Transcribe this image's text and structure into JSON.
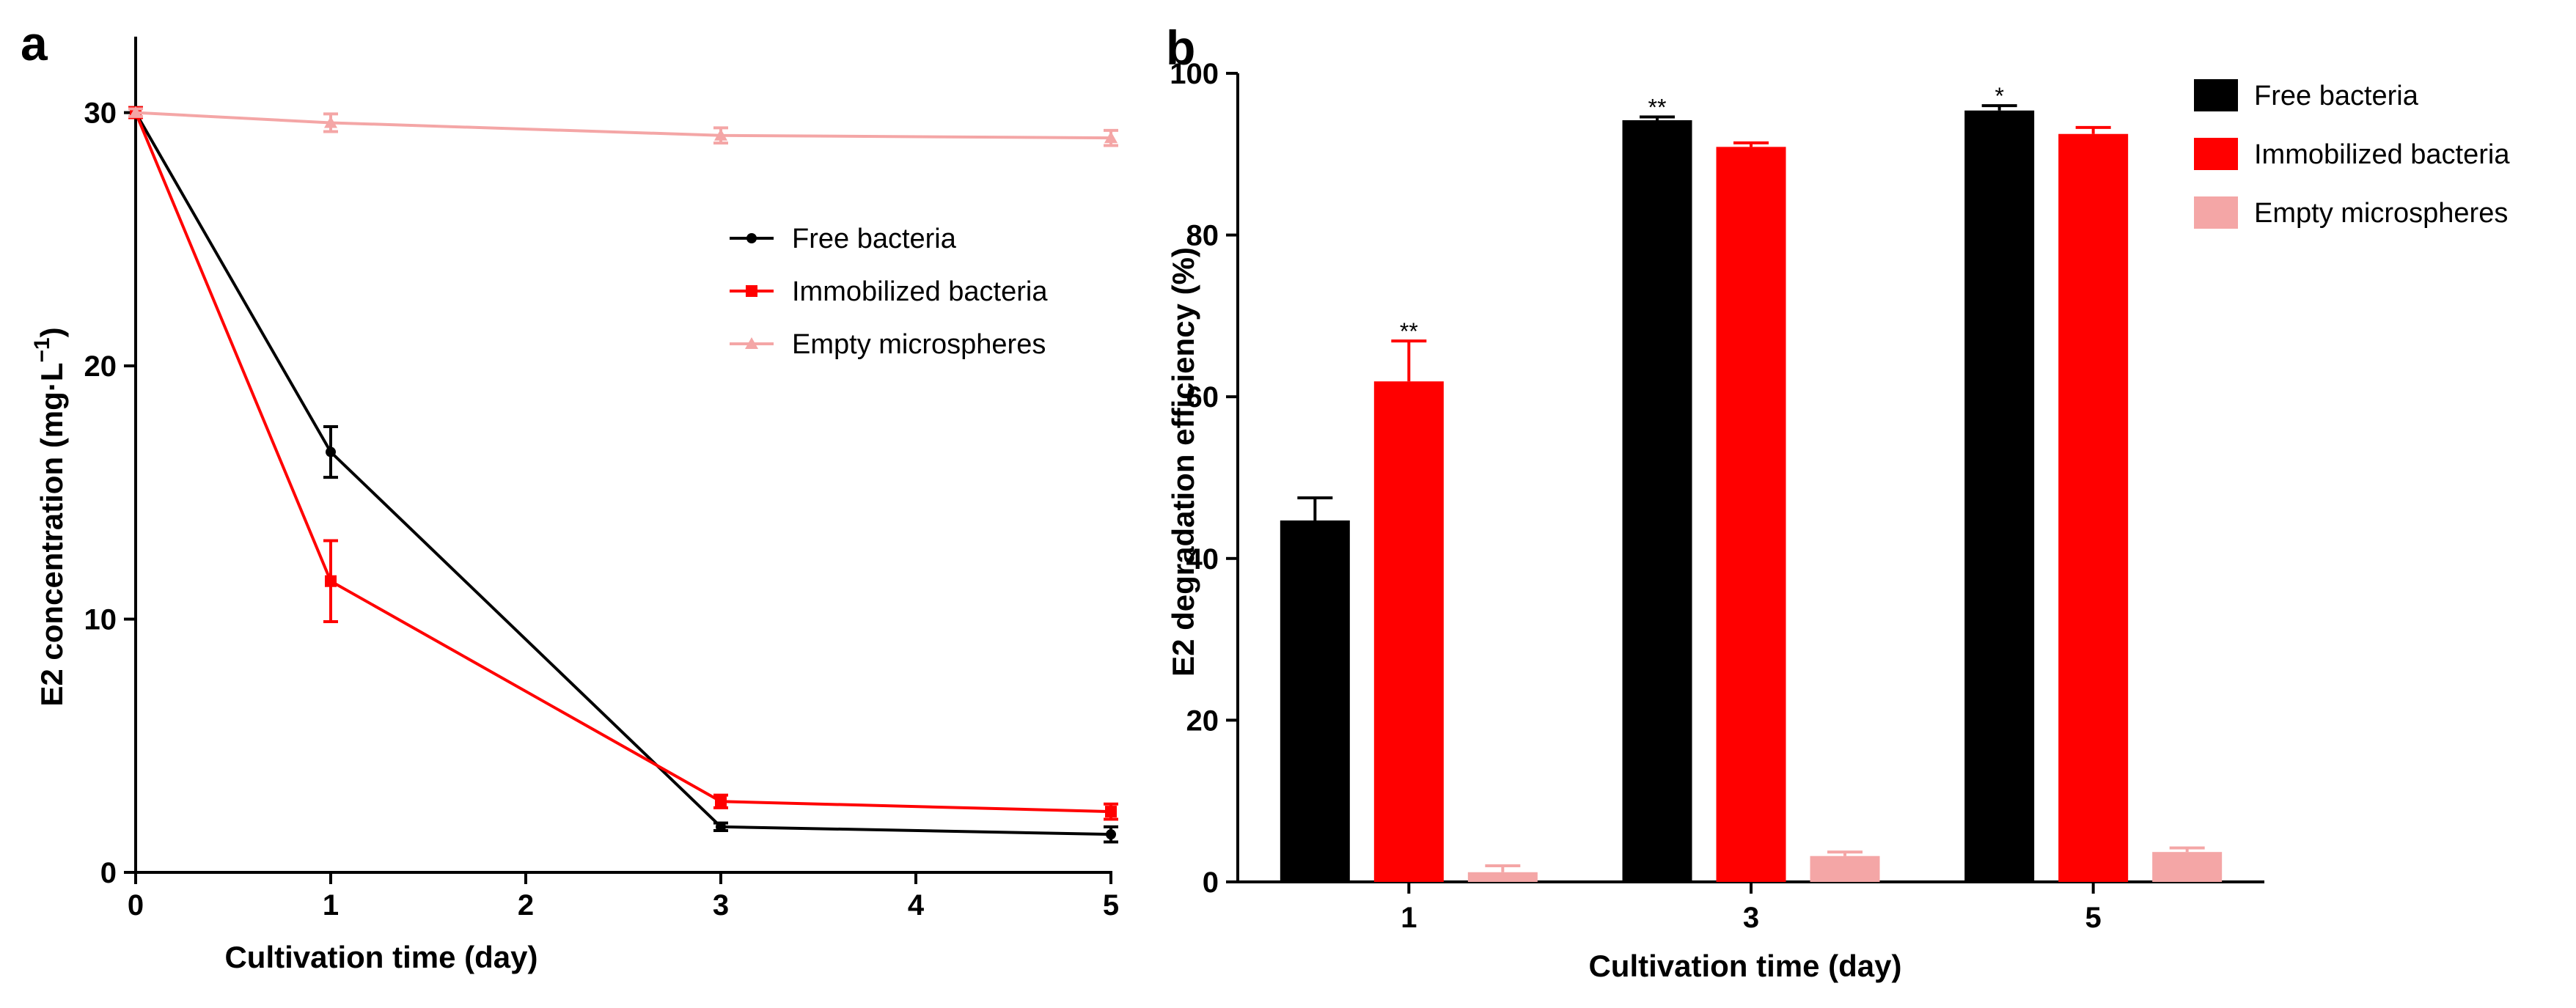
{
  "chart_data": [
    {
      "panel_label": "a",
      "type": "line",
      "xlabel": "Cultivation time (day)",
      "ylabel": "E2 concentration (mg·L",
      "ylabel_sup": "−1",
      "ylabel_close": ")",
      "xlim": [
        0,
        5
      ],
      "ylim": [
        0,
        33
      ],
      "x_ticks": [
        "0",
        "1",
        "2",
        "3",
        "4",
        "5"
      ],
      "y_ticks": [
        "0",
        "10",
        "20",
        "30"
      ],
      "legend_position": "center-right",
      "series": [
        {
          "name": "Free bacteria",
          "color": "#000000",
          "marker": "circle",
          "x": [
            0,
            1,
            3,
            5
          ],
          "y": [
            30.0,
            16.6,
            1.8,
            1.5
          ],
          "err": [
            0.2,
            1.0,
            0.15,
            0.3
          ]
        },
        {
          "name": "Immobilized bacteria",
          "color": "#ff0000",
          "marker": "square",
          "x": [
            0,
            1,
            3,
            5
          ],
          "y": [
            30.0,
            11.5,
            2.8,
            2.4
          ],
          "err": [
            0.2,
            1.6,
            0.25,
            0.3
          ]
        },
        {
          "name": "Empty microspheres",
          "color": "#f4a6a6",
          "marker": "triangle",
          "x": [
            0,
            1,
            3,
            5
          ],
          "y": [
            30.0,
            29.6,
            29.1,
            29.0
          ],
          "err": [
            0.15,
            0.35,
            0.3,
            0.3
          ]
        }
      ]
    },
    {
      "panel_label": "b",
      "type": "bar",
      "xlabel": "Cultivation time (day)",
      "ylabel": "E2 degradation efficiency (%)",
      "ylim": [
        0,
        100
      ],
      "y_ticks": [
        "0",
        "20",
        "40",
        "60",
        "80",
        "100"
      ],
      "categories": [
        "1",
        "3",
        "5"
      ],
      "legend_position": "top-right",
      "series": [
        {
          "name": "Free bacteria",
          "color": "#000000",
          "values": [
            44.7,
            94.2,
            95.4
          ],
          "err": [
            2.8,
            0.4,
            0.6
          ]
        },
        {
          "name": "Immobilized bacteria",
          "color": "#ff0000",
          "values": [
            61.9,
            90.9,
            92.5
          ],
          "err": [
            5.0,
            0.5,
            0.8
          ]
        },
        {
          "name": "Empty microspheres",
          "color": "#f4a6a6",
          "values": [
            1.2,
            3.2,
            3.7
          ],
          "err": [
            0.8,
            0.5,
            0.5
          ]
        }
      ],
      "annotations": [
        {
          "category": "1",
          "series": "Immobilized bacteria",
          "text": "**"
        },
        {
          "category": "3",
          "series": "Free bacteria",
          "text": "**"
        },
        {
          "category": "5",
          "series": "Free bacteria",
          "text": "*"
        }
      ]
    }
  ]
}
